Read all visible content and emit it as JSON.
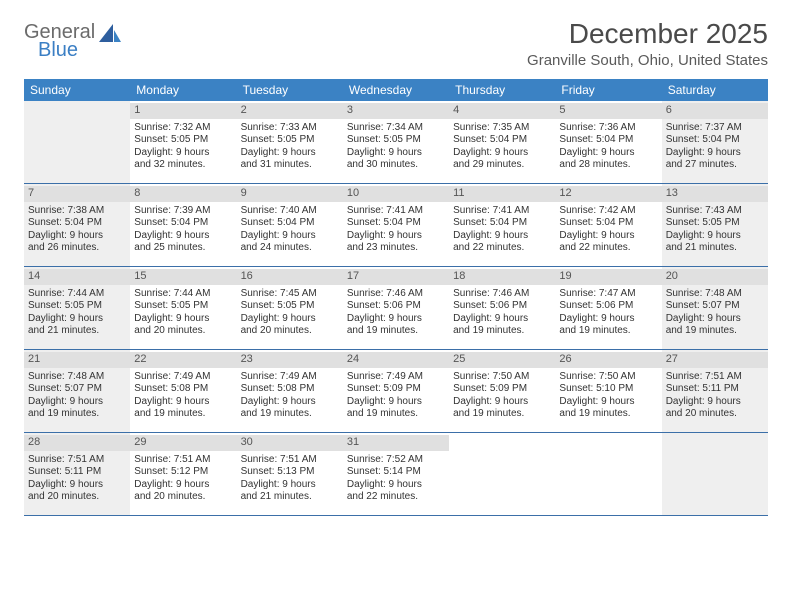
{
  "logo": {
    "general": "General",
    "blue": "Blue"
  },
  "title": "December 2025",
  "location": "Granville South, Ohio, United States",
  "colors": {
    "header_bg": "#3b82c4",
    "header_text": "#ffffff",
    "daynum_bg": "#e0e0e0",
    "shaded_bg": "#efefef",
    "border": "#3b6fa8"
  },
  "weekdays": [
    "Sunday",
    "Monday",
    "Tuesday",
    "Wednesday",
    "Thursday",
    "Friday",
    "Saturday"
  ],
  "weeks": [
    [
      {
        "n": "",
        "sunrise": "",
        "sunset": "",
        "daylight1": "",
        "daylight2": "",
        "shaded": true
      },
      {
        "n": "1",
        "sunrise": "Sunrise: 7:32 AM",
        "sunset": "Sunset: 5:05 PM",
        "daylight1": "Daylight: 9 hours",
        "daylight2": "and 32 minutes."
      },
      {
        "n": "2",
        "sunrise": "Sunrise: 7:33 AM",
        "sunset": "Sunset: 5:05 PM",
        "daylight1": "Daylight: 9 hours",
        "daylight2": "and 31 minutes."
      },
      {
        "n": "3",
        "sunrise": "Sunrise: 7:34 AM",
        "sunset": "Sunset: 5:05 PM",
        "daylight1": "Daylight: 9 hours",
        "daylight2": "and 30 minutes."
      },
      {
        "n": "4",
        "sunrise": "Sunrise: 7:35 AM",
        "sunset": "Sunset: 5:04 PM",
        "daylight1": "Daylight: 9 hours",
        "daylight2": "and 29 minutes."
      },
      {
        "n": "5",
        "sunrise": "Sunrise: 7:36 AM",
        "sunset": "Sunset: 5:04 PM",
        "daylight1": "Daylight: 9 hours",
        "daylight2": "and 28 minutes."
      },
      {
        "n": "6",
        "sunrise": "Sunrise: 7:37 AM",
        "sunset": "Sunset: 5:04 PM",
        "daylight1": "Daylight: 9 hours",
        "daylight2": "and 27 minutes.",
        "shaded": true
      }
    ],
    [
      {
        "n": "7",
        "sunrise": "Sunrise: 7:38 AM",
        "sunset": "Sunset: 5:04 PM",
        "daylight1": "Daylight: 9 hours",
        "daylight2": "and 26 minutes.",
        "shaded": true
      },
      {
        "n": "8",
        "sunrise": "Sunrise: 7:39 AM",
        "sunset": "Sunset: 5:04 PM",
        "daylight1": "Daylight: 9 hours",
        "daylight2": "and 25 minutes."
      },
      {
        "n": "9",
        "sunrise": "Sunrise: 7:40 AM",
        "sunset": "Sunset: 5:04 PM",
        "daylight1": "Daylight: 9 hours",
        "daylight2": "and 24 minutes."
      },
      {
        "n": "10",
        "sunrise": "Sunrise: 7:41 AM",
        "sunset": "Sunset: 5:04 PM",
        "daylight1": "Daylight: 9 hours",
        "daylight2": "and 23 minutes."
      },
      {
        "n": "11",
        "sunrise": "Sunrise: 7:41 AM",
        "sunset": "Sunset: 5:04 PM",
        "daylight1": "Daylight: 9 hours",
        "daylight2": "and 22 minutes."
      },
      {
        "n": "12",
        "sunrise": "Sunrise: 7:42 AM",
        "sunset": "Sunset: 5:04 PM",
        "daylight1": "Daylight: 9 hours",
        "daylight2": "and 22 minutes."
      },
      {
        "n": "13",
        "sunrise": "Sunrise: 7:43 AM",
        "sunset": "Sunset: 5:05 PM",
        "daylight1": "Daylight: 9 hours",
        "daylight2": "and 21 minutes.",
        "shaded": true
      }
    ],
    [
      {
        "n": "14",
        "sunrise": "Sunrise: 7:44 AM",
        "sunset": "Sunset: 5:05 PM",
        "daylight1": "Daylight: 9 hours",
        "daylight2": "and 21 minutes.",
        "shaded": true
      },
      {
        "n": "15",
        "sunrise": "Sunrise: 7:44 AM",
        "sunset": "Sunset: 5:05 PM",
        "daylight1": "Daylight: 9 hours",
        "daylight2": "and 20 minutes."
      },
      {
        "n": "16",
        "sunrise": "Sunrise: 7:45 AM",
        "sunset": "Sunset: 5:05 PM",
        "daylight1": "Daylight: 9 hours",
        "daylight2": "and 20 minutes."
      },
      {
        "n": "17",
        "sunrise": "Sunrise: 7:46 AM",
        "sunset": "Sunset: 5:06 PM",
        "daylight1": "Daylight: 9 hours",
        "daylight2": "and 19 minutes."
      },
      {
        "n": "18",
        "sunrise": "Sunrise: 7:46 AM",
        "sunset": "Sunset: 5:06 PM",
        "daylight1": "Daylight: 9 hours",
        "daylight2": "and 19 minutes."
      },
      {
        "n": "19",
        "sunrise": "Sunrise: 7:47 AM",
        "sunset": "Sunset: 5:06 PM",
        "daylight1": "Daylight: 9 hours",
        "daylight2": "and 19 minutes."
      },
      {
        "n": "20",
        "sunrise": "Sunrise: 7:48 AM",
        "sunset": "Sunset: 5:07 PM",
        "daylight1": "Daylight: 9 hours",
        "daylight2": "and 19 minutes.",
        "shaded": true
      }
    ],
    [
      {
        "n": "21",
        "sunrise": "Sunrise: 7:48 AM",
        "sunset": "Sunset: 5:07 PM",
        "daylight1": "Daylight: 9 hours",
        "daylight2": "and 19 minutes.",
        "shaded": true
      },
      {
        "n": "22",
        "sunrise": "Sunrise: 7:49 AM",
        "sunset": "Sunset: 5:08 PM",
        "daylight1": "Daylight: 9 hours",
        "daylight2": "and 19 minutes."
      },
      {
        "n": "23",
        "sunrise": "Sunrise: 7:49 AM",
        "sunset": "Sunset: 5:08 PM",
        "daylight1": "Daylight: 9 hours",
        "daylight2": "and 19 minutes."
      },
      {
        "n": "24",
        "sunrise": "Sunrise: 7:49 AM",
        "sunset": "Sunset: 5:09 PM",
        "daylight1": "Daylight: 9 hours",
        "daylight2": "and 19 minutes."
      },
      {
        "n": "25",
        "sunrise": "Sunrise: 7:50 AM",
        "sunset": "Sunset: 5:09 PM",
        "daylight1": "Daylight: 9 hours",
        "daylight2": "and 19 minutes."
      },
      {
        "n": "26",
        "sunrise": "Sunrise: 7:50 AM",
        "sunset": "Sunset: 5:10 PM",
        "daylight1": "Daylight: 9 hours",
        "daylight2": "and 19 minutes."
      },
      {
        "n": "27",
        "sunrise": "Sunrise: 7:51 AM",
        "sunset": "Sunset: 5:11 PM",
        "daylight1": "Daylight: 9 hours",
        "daylight2": "and 20 minutes.",
        "shaded": true
      }
    ],
    [
      {
        "n": "28",
        "sunrise": "Sunrise: 7:51 AM",
        "sunset": "Sunset: 5:11 PM",
        "daylight1": "Daylight: 9 hours",
        "daylight2": "and 20 minutes.",
        "shaded": true
      },
      {
        "n": "29",
        "sunrise": "Sunrise: 7:51 AM",
        "sunset": "Sunset: 5:12 PM",
        "daylight1": "Daylight: 9 hours",
        "daylight2": "and 20 minutes."
      },
      {
        "n": "30",
        "sunrise": "Sunrise: 7:51 AM",
        "sunset": "Sunset: 5:13 PM",
        "daylight1": "Daylight: 9 hours",
        "daylight2": "and 21 minutes."
      },
      {
        "n": "31",
        "sunrise": "Sunrise: 7:52 AM",
        "sunset": "Sunset: 5:14 PM",
        "daylight1": "Daylight: 9 hours",
        "daylight2": "and 22 minutes."
      },
      {
        "n": "",
        "sunrise": "",
        "sunset": "",
        "daylight1": "",
        "daylight2": ""
      },
      {
        "n": "",
        "sunrise": "",
        "sunset": "",
        "daylight1": "",
        "daylight2": ""
      },
      {
        "n": "",
        "sunrise": "",
        "sunset": "",
        "daylight1": "",
        "daylight2": "",
        "shaded": true
      }
    ]
  ]
}
